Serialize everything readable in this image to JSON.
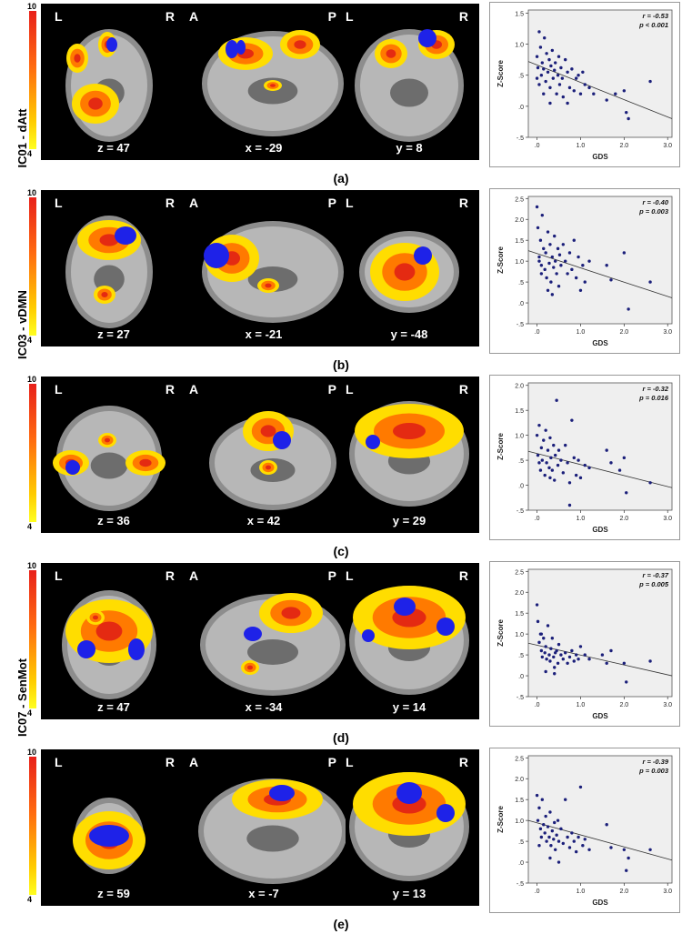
{
  "colorbar": {
    "max": "10",
    "min": "4"
  },
  "rows": [
    {
      "id": "a",
      "network_label": "IC01 - dAtt",
      "caption": "(a)",
      "views": [
        {
          "left_label": "L",
          "right_label": "R",
          "coord": "z = 47"
        },
        {
          "left_label": "A",
          "right_label": "P",
          "coord": "x = -29"
        },
        {
          "left_label": "L",
          "right_label": "R",
          "coord": "y = 8"
        }
      ],
      "r_text": "r = -0.53",
      "p_text": "p < 0.001"
    },
    {
      "id": "b",
      "network_label": "IC03 - vDMN",
      "caption": "(b)",
      "views": [
        {
          "left_label": "L",
          "right_label": "R",
          "coord": "z = 27"
        },
        {
          "left_label": "A",
          "right_label": "P",
          "coord": "x = -21"
        },
        {
          "left_label": "L",
          "right_label": "R",
          "coord": "y = -48"
        }
      ],
      "r_text": "r = -0.40",
      "p_text": "p = 0.003"
    },
    {
      "id": "c",
      "network_label": "",
      "caption": "(c)",
      "views": [
        {
          "left_label": "L",
          "right_label": "R",
          "coord": "z = 36"
        },
        {
          "left_label": "A",
          "right_label": "P",
          "coord": "x = 42"
        },
        {
          "left_label": "L",
          "right_label": "R",
          "coord": "y = 29"
        }
      ],
      "r_text": "r = -0.32",
      "p_text": "p = 0.016"
    },
    {
      "id": "d",
      "network_label": "IC07 - SenMot",
      "caption": "(d)",
      "views": [
        {
          "left_label": "L",
          "right_label": "R",
          "coord": "z = 47"
        },
        {
          "left_label": "A",
          "right_label": "P",
          "coord": "x = -34"
        },
        {
          "left_label": "L",
          "right_label": "R",
          "coord": "y = 14"
        }
      ],
      "r_text": "r = -0.37",
      "p_text": "p = 0.005"
    },
    {
      "id": "e",
      "network_label": "",
      "caption": "(e)",
      "views": [
        {
          "left_label": "L",
          "right_label": "R",
          "coord": "z = 59"
        },
        {
          "left_label": "A",
          "right_label": "P",
          "coord": "x = -7"
        },
        {
          "left_label": "L",
          "right_label": "R",
          "coord": "y = 13"
        }
      ],
      "r_text": "r = -0.39",
      "p_text": "p = 0.003"
    }
  ],
  "chart_data": [
    {
      "type": "scatter",
      "panel": "a",
      "xlabel": "GDS",
      "ylabel": "Z-Score",
      "xlim": [
        -0.2,
        3.1
      ],
      "ylim": [
        -0.5,
        1.55
      ],
      "xticks": [
        ".0",
        "1.0",
        "2.0",
        "3.0"
      ],
      "yticks": [
        "1.5",
        "1.0",
        ".5",
        ".0",
        "-.5"
      ],
      "yticks_values": [
        1.5,
        1.0,
        0.5,
        0.0,
        -0.5
      ],
      "fit": [
        [
          -0.2,
          0.72
        ],
        [
          3.1,
          -0.2
        ]
      ],
      "points": [
        [
          0.0,
          0.8
        ],
        [
          0.02,
          0.62
        ],
        [
          0.05,
          1.2
        ],
        [
          0.08,
          0.95
        ],
        [
          0.1,
          0.5
        ],
        [
          0.12,
          0.7
        ],
        [
          0.15,
          0.6
        ],
        [
          0.17,
          1.1
        ],
        [
          0.2,
          0.4
        ],
        [
          0.22,
          0.85
        ],
        [
          0.25,
          0.55
        ],
        [
          0.28,
          0.75
        ],
        [
          0.3,
          0.3
        ],
        [
          0.32,
          0.65
        ],
        [
          0.35,
          0.9
        ],
        [
          0.37,
          0.45
        ],
        [
          0.4,
          0.58
        ],
        [
          0.42,
          0.7
        ],
        [
          0.45,
          0.2
        ],
        [
          0.48,
          0.5
        ],
        [
          0.5,
          0.8
        ],
        [
          0.52,
          0.35
        ],
        [
          0.55,
          0.62
        ],
        [
          0.58,
          0.45
        ],
        [
          0.6,
          0.15
        ],
        [
          0.65,
          0.75
        ],
        [
          0.7,
          0.55
        ],
        [
          0.75,
          0.3
        ],
        [
          0.8,
          0.6
        ],
        [
          0.85,
          0.25
        ],
        [
          0.9,
          0.45
        ],
        [
          0.95,
          0.5
        ],
        [
          1.0,
          0.2
        ],
        [
          1.05,
          0.55
        ],
        [
          1.1,
          0.35
        ],
        [
          1.2,
          0.3
        ],
        [
          1.3,
          0.2
        ],
        [
          1.6,
          0.1
        ],
        [
          1.8,
          0.2
        ],
        [
          2.0,
          0.25
        ],
        [
          2.05,
          -0.1
        ],
        [
          2.1,
          -0.2
        ],
        [
          2.6,
          0.4
        ],
        [
          0.0,
          0.45
        ],
        [
          0.15,
          0.2
        ],
        [
          0.3,
          0.05
        ],
        [
          0.7,
          0.05
        ],
        [
          0.05,
          0.35
        ]
      ]
    },
    {
      "type": "scatter",
      "panel": "b",
      "xlabel": "GDS",
      "ylabel": "Z-Score",
      "xlim": [
        -0.2,
        3.1
      ],
      "ylim": [
        -0.5,
        2.55
      ],
      "xticks": [
        ".0",
        "1.0",
        "2.0",
        "3.0"
      ],
      "yticks": [
        "2.5",
        "2.0",
        "1.5",
        "1.0",
        ".5",
        ".0",
        "-.5"
      ],
      "yticks_values": [
        2.5,
        2.0,
        1.5,
        1.0,
        0.5,
        0.0,
        -0.5
      ],
      "fit": [
        [
          -0.2,
          1.25
        ],
        [
          3.1,
          0.12
        ]
      ],
      "points": [
        [
          0.0,
          2.3
        ],
        [
          0.02,
          1.8
        ],
        [
          0.05,
          1.0
        ],
        [
          0.08,
          1.5
        ],
        [
          0.1,
          0.9
        ],
        [
          0.12,
          2.1
        ],
        [
          0.15,
          1.3
        ],
        [
          0.18,
          0.8
        ],
        [
          0.2,
          1.2
        ],
        [
          0.22,
          0.6
        ],
        [
          0.25,
          1.7
        ],
        [
          0.28,
          0.95
        ],
        [
          0.3,
          1.4
        ],
        [
          0.32,
          0.5
        ],
        [
          0.35,
          1.1
        ],
        [
          0.38,
          0.85
        ],
        [
          0.4,
          1.6
        ],
        [
          0.42,
          1.0
        ],
        [
          0.45,
          0.7
        ],
        [
          0.48,
          1.3
        ],
        [
          0.5,
          0.4
        ],
        [
          0.52,
          1.15
        ],
        [
          0.55,
          0.9
        ],
        [
          0.6,
          1.4
        ],
        [
          0.65,
          1.0
        ],
        [
          0.7,
          0.7
        ],
        [
          0.75,
          1.2
        ],
        [
          0.8,
          0.8
        ],
        [
          0.85,
          1.5
        ],
        [
          0.9,
          0.6
        ],
        [
          0.95,
          1.1
        ],
        [
          1.0,
          0.3
        ],
        [
          1.05,
          0.9
        ],
        [
          1.1,
          0.5
        ],
        [
          1.2,
          1.0
        ],
        [
          1.6,
          0.9
        ],
        [
          1.7,
          0.55
        ],
        [
          2.0,
          1.2
        ],
        [
          2.1,
          -0.15
        ],
        [
          2.6,
          0.5
        ],
        [
          0.1,
          0.7
        ],
        [
          0.25,
          0.3
        ],
        [
          0.35,
          0.2
        ],
        [
          0.05,
          1.1
        ]
      ]
    },
    {
      "type": "scatter",
      "panel": "c",
      "xlabel": "GDS",
      "ylabel": "Z-Score",
      "xlim": [
        -0.2,
        3.1
      ],
      "ylim": [
        -0.5,
        2.05
      ],
      "xticks": [
        ".0",
        "1.0",
        "2.0",
        "3.0"
      ],
      "yticks": [
        "2.0",
        "1.5",
        "1.0",
        ".5",
        ".0",
        "-.5"
      ],
      "yticks_values": [
        2.0,
        1.5,
        1.0,
        0.5,
        0.0,
        -0.5
      ],
      "fit": [
        [
          -0.2,
          0.68
        ],
        [
          3.1,
          -0.05
        ]
      ],
      "points": [
        [
          0.0,
          1.0
        ],
        [
          0.02,
          0.6
        ],
        [
          0.05,
          1.2
        ],
        [
          0.08,
          0.3
        ],
        [
          0.1,
          0.75
        ],
        [
          0.12,
          0.5
        ],
        [
          0.15,
          0.9
        ],
        [
          0.18,
          0.2
        ],
        [
          0.2,
          1.1
        ],
        [
          0.22,
          0.45
        ],
        [
          0.25,
          0.7
        ],
        [
          0.28,
          0.35
        ],
        [
          0.3,
          0.95
        ],
        [
          0.32,
          0.55
        ],
        [
          0.35,
          0.3
        ],
        [
          0.38,
          0.8
        ],
        [
          0.4,
          0.1
        ],
        [
          0.42,
          0.6
        ],
        [
          0.45,
          1.7
        ],
        [
          0.48,
          0.4
        ],
        [
          0.5,
          0.7
        ],
        [
          0.55,
          0.5
        ],
        [
          0.6,
          0.25
        ],
        [
          0.65,
          0.8
        ],
        [
          0.7,
          0.45
        ],
        [
          0.75,
          0.05
        ],
        [
          0.8,
          1.3
        ],
        [
          0.85,
          0.55
        ],
        [
          0.9,
          0.2
        ],
        [
          0.95,
          0.5
        ],
        [
          1.0,
          0.15
        ],
        [
          1.1,
          0.4
        ],
        [
          1.2,
          0.35
        ],
        [
          1.6,
          0.7
        ],
        [
          1.7,
          0.45
        ],
        [
          1.9,
          0.3
        ],
        [
          2.0,
          0.55
        ],
        [
          2.05,
          -0.15
        ],
        [
          2.6,
          0.05
        ],
        [
          0.75,
          -0.4
        ],
        [
          0.05,
          0.45
        ],
        [
          0.3,
          0.15
        ]
      ]
    },
    {
      "type": "scatter",
      "panel": "d",
      "xlabel": "GDS",
      "ylabel": "Z-Score",
      "xlim": [
        -0.2,
        3.1
      ],
      "ylim": [
        -0.5,
        2.55
      ],
      "xticks": [
        ".0",
        "1.0",
        "2.0",
        "3.0"
      ],
      "yticks": [
        "2.5",
        "2.0",
        "1.5",
        "1.0",
        ".5",
        ".0",
        "-.5"
      ],
      "yticks_values": [
        2.5,
        2.0,
        1.5,
        1.0,
        0.5,
        0.0,
        -0.5
      ],
      "fit": [
        [
          -0.2,
          0.78
        ],
        [
          3.1,
          0.0
        ]
      ],
      "points": [
        [
          0.0,
          1.7
        ],
        [
          0.02,
          1.3
        ],
        [
          0.05,
          0.8
        ],
        [
          0.08,
          1.0
        ],
        [
          0.1,
          0.6
        ],
        [
          0.12,
          0.45
        ],
        [
          0.15,
          0.9
        ],
        [
          0.18,
          0.55
        ],
        [
          0.2,
          0.7
        ],
        [
          0.22,
          0.4
        ],
        [
          0.25,
          1.2
        ],
        [
          0.28,
          0.5
        ],
        [
          0.3,
          0.35
        ],
        [
          0.32,
          0.65
        ],
        [
          0.35,
          0.9
        ],
        [
          0.38,
          0.45
        ],
        [
          0.4,
          0.2
        ],
        [
          0.42,
          0.55
        ],
        [
          0.45,
          0.6
        ],
        [
          0.48,
          0.3
        ],
        [
          0.5,
          0.75
        ],
        [
          0.55,
          0.5
        ],
        [
          0.6,
          0.4
        ],
        [
          0.65,
          0.55
        ],
        [
          0.7,
          0.3
        ],
        [
          0.75,
          0.45
        ],
        [
          0.8,
          0.6
        ],
        [
          0.85,
          0.35
        ],
        [
          0.9,
          0.5
        ],
        [
          0.95,
          0.4
        ],
        [
          1.0,
          0.7
        ],
        [
          1.1,
          0.5
        ],
        [
          1.2,
          0.4
        ],
        [
          1.5,
          0.5
        ],
        [
          1.6,
          0.3
        ],
        [
          1.7,
          0.6
        ],
        [
          2.0,
          0.3
        ],
        [
          2.05,
          -0.15
        ],
        [
          2.6,
          0.35
        ],
        [
          0.1,
          1.0
        ],
        [
          0.2,
          0.1
        ],
        [
          0.4,
          0.05
        ]
      ]
    },
    {
      "type": "scatter",
      "panel": "e",
      "xlabel": "GDS",
      "ylabel": "Z-Score",
      "xlim": [
        -0.2,
        3.1
      ],
      "ylim": [
        -0.5,
        2.55
      ],
      "xticks": [
        ".0",
        "1.0",
        "2.0",
        "3.0"
      ],
      "yticks": [
        "2.5",
        "2.0",
        "1.5",
        "1.0",
        ".5",
        ".0",
        "-.5"
      ],
      "yticks_values": [
        2.5,
        2.0,
        1.5,
        1.0,
        0.5,
        0.0,
        -0.5
      ],
      "fit": [
        [
          -0.2,
          1.0
        ],
        [
          3.1,
          0.05
        ]
      ],
      "points": [
        [
          0.0,
          1.6
        ],
        [
          0.02,
          1.0
        ],
        [
          0.05,
          1.3
        ],
        [
          0.08,
          0.8
        ],
        [
          0.1,
          0.6
        ],
        [
          0.12,
          1.5
        ],
        [
          0.15,
          0.9
        ],
        [
          0.18,
          0.7
        ],
        [
          0.2,
          1.1
        ],
        [
          0.22,
          0.5
        ],
        [
          0.25,
          0.85
        ],
        [
          0.28,
          0.6
        ],
        [
          0.3,
          1.2
        ],
        [
          0.32,
          0.4
        ],
        [
          0.35,
          0.75
        ],
        [
          0.38,
          0.55
        ],
        [
          0.4,
          0.95
        ],
        [
          0.42,
          0.3
        ],
        [
          0.45,
          0.65
        ],
        [
          0.48,
          1.0
        ],
        [
          0.5,
          0.5
        ],
        [
          0.55,
          0.8
        ],
        [
          0.6,
          0.45
        ],
        [
          0.65,
          1.5
        ],
        [
          0.7,
          0.6
        ],
        [
          0.75,
          0.35
        ],
        [
          0.8,
          0.7
        ],
        [
          0.85,
          0.5
        ],
        [
          0.9,
          0.25
        ],
        [
          0.95,
          0.6
        ],
        [
          1.0,
          1.8
        ],
        [
          1.05,
          0.4
        ],
        [
          1.1,
          0.55
        ],
        [
          1.2,
          0.3
        ],
        [
          1.6,
          0.9
        ],
        [
          1.7,
          0.35
        ],
        [
          2.0,
          0.3
        ],
        [
          2.05,
          -0.2
        ],
        [
          2.1,
          0.1
        ],
        [
          2.6,
          0.3
        ],
        [
          0.05,
          0.4
        ],
        [
          0.3,
          0.1
        ],
        [
          0.5,
          0.0
        ]
      ]
    }
  ]
}
